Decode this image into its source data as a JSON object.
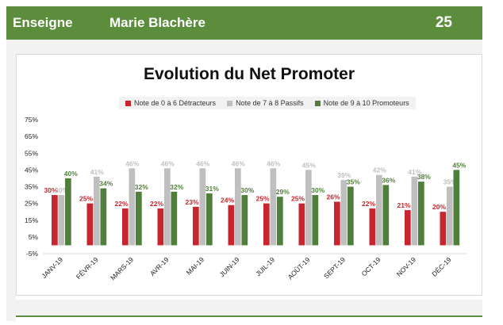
{
  "header": {
    "label": "Enseigne",
    "name": "Marie Blachère",
    "number": "25"
  },
  "colors": {
    "header_green": "#5b8d3d",
    "detractors": "#c9252f",
    "passives": "#bfbfbf",
    "promoters": "#4f7f3a"
  },
  "chart_data": {
    "type": "bar",
    "title": "Evolution du Net Promoter",
    "categories": [
      "JANV-19",
      "FÉVR-19",
      "MARS-19",
      "AVR-19",
      "MAI-19",
      "JUIN-19",
      "JUIL-19",
      "AOÛT-19",
      "SEPT-19",
      "OCT-19",
      "NOV-19",
      "DÉC-19"
    ],
    "series": [
      {
        "name": "Note de 0 à 6 Détracteurs",
        "values": [
          30,
          25,
          22,
          22,
          23,
          24,
          25,
          25,
          26,
          22,
          21,
          20
        ]
      },
      {
        "name": "Note de 7 à 8 Passifs",
        "values": [
          30,
          41,
          46,
          46,
          46,
          46,
          46,
          45,
          39,
          42,
          41,
          35
        ]
      },
      {
        "name": "Note de 9 à 10 Promoteurs",
        "values": [
          40,
          34,
          32,
          32,
          31,
          30,
          29,
          30,
          35,
          36,
          38,
          45
        ]
      }
    ],
    "yticks": [
      "75%",
      "65%",
      "55%",
      "45%",
      "35%",
      "25%",
      "15%",
      "5%",
      "-5%"
    ],
    "ylim": [
      -5,
      75
    ],
    "legend_position": "top",
    "grid": false
  }
}
